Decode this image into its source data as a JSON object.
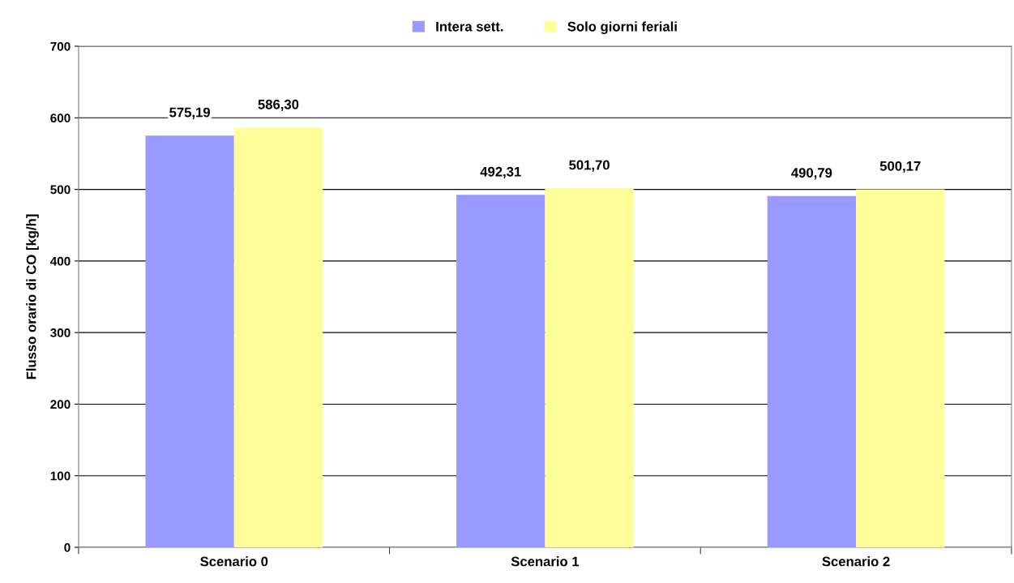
{
  "chart_data": {
    "type": "bar",
    "ylabel": "Flusso orario di CO [kg/h]",
    "categories": [
      "Scenario 0",
      "Scenario 1",
      "Scenario 2"
    ],
    "series": [
      {
        "name": "Intera sett.",
        "color": "#9999ff",
        "values": [
          575.19,
          492.31,
          490.79
        ],
        "value_labels": [
          "575,19",
          "492,31",
          "490,79"
        ]
      },
      {
        "name": "Solo giorni feriali",
        "color": "#ffff99",
        "values": [
          586.3,
          501.7,
          500.17
        ],
        "value_labels": [
          "586,30",
          "501,70",
          "500,17"
        ]
      }
    ],
    "ylim": [
      0,
      700
    ],
    "yticks": [
      0,
      100,
      200,
      300,
      400,
      500,
      600,
      700
    ],
    "grid": "y",
    "legend": "top"
  }
}
